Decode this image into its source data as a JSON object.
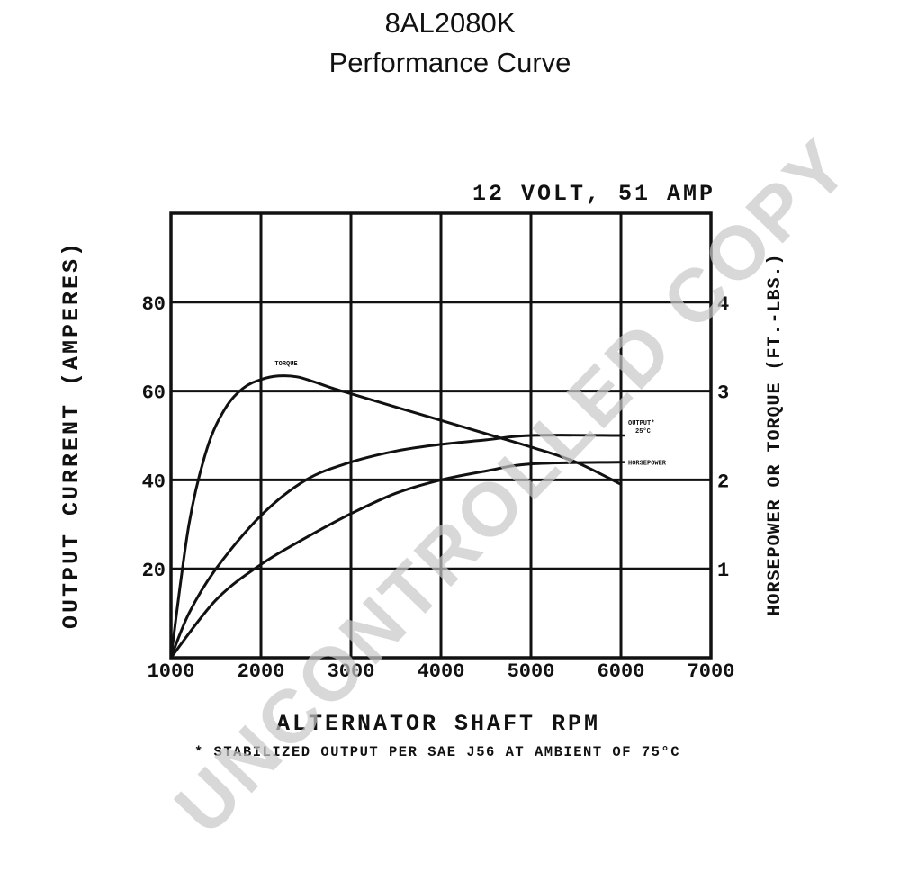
{
  "page": {
    "title_line1": "8AL2080K",
    "title_line2": "Performance Curve",
    "watermark": "UNCONTROLLED COPY"
  },
  "chart_data": {
    "type": "line",
    "subtitle": "12 VOLT, 51 AMP",
    "xlabel": "ALTERNATOR SHAFT RPM",
    "ylabel": "OUTPUT CURRENT (AMPERES)",
    "y2label": "HORSEPOWER OR TORQUE (FT.-LBS.)",
    "footnote": "* STABILIZED OUTPUT PER SAE J56 AT AMBIENT OF 75°C",
    "xlim": [
      1000,
      7000
    ],
    "ylim": [
      0,
      100
    ],
    "y2lim": [
      0,
      5
    ],
    "x_ticks": [
      "1000",
      "2000",
      "3000",
      "4000",
      "5000",
      "6000",
      "7000"
    ],
    "y_ticks": [
      "20",
      "40",
      "60",
      "80"
    ],
    "y_tick_values": [
      20,
      40,
      60,
      80
    ],
    "y2_ticks": [
      "1",
      "2",
      "3",
      "4"
    ],
    "y2_tick_values": [
      1,
      2,
      3,
      4
    ],
    "grid": true,
    "series": [
      {
        "name": "TORQUE",
        "axis": "right",
        "x": [
          1000,
          1200,
          1400,
          1600,
          1800,
          2000,
          2200,
          2400,
          2600,
          2800,
          3000,
          3500,
          4000,
          4500,
          5000,
          5500,
          6000
        ],
        "values": [
          0.0,
          1.5,
          2.35,
          2.8,
          3.03,
          3.13,
          3.17,
          3.16,
          3.1,
          3.03,
          2.97,
          2.82,
          2.67,
          2.52,
          2.37,
          2.2,
          1.95
        ]
      },
      {
        "name": "OUTPUT* 25°C",
        "axis": "left",
        "x": [
          1000,
          1200,
          1500,
          2000,
          2500,
          3000,
          3500,
          4000,
          4500,
          5000,
          6000
        ],
        "values": [
          0,
          10,
          20,
          32,
          40,
          44,
          46.5,
          48,
          49,
          50,
          50
        ]
      },
      {
        "name": "HORSEPOWER",
        "axis": "right",
        "x": [
          1000,
          1500,
          2000,
          2500,
          3000,
          3500,
          4000,
          4500,
          5000,
          6000
        ],
        "values": [
          0.0,
          0.65,
          1.05,
          1.35,
          1.62,
          1.85,
          2.0,
          2.1,
          2.18,
          2.2
        ]
      }
    ],
    "legend": "inline-right"
  }
}
